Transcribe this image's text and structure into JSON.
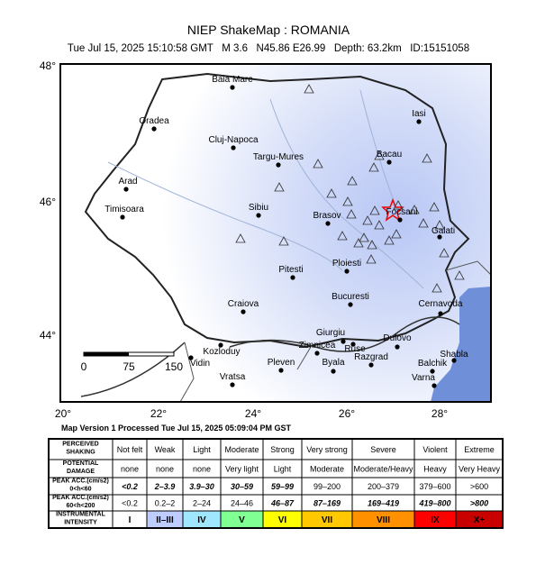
{
  "header": {
    "title": "NIEP ShakeMap : ROMANIA",
    "subtitle": "Tue Jul 15, 2025 15:10:58 GMT   M 3.6   N45.86 E26.99   Depth: 63.2km   ID:15151058"
  },
  "map": {
    "lat_labels": [
      "48°",
      "46°",
      "44°"
    ],
    "lon_labels": [
      "20°",
      "22°",
      "24°",
      "26°",
      "28°"
    ],
    "scale_labels": [
      "0",
      "75",
      "150"
    ],
    "cities": [
      "Baia Mare",
      "Oradea",
      "Cluj-Napoca",
      "Targu-Mures",
      "Iasi",
      "Bacau",
      "Arad",
      "Timisoara",
      "Sibiu",
      "Brasov",
      "Focsani",
      "Galati",
      "Ploiesti",
      "Pitesti",
      "Bucuresti",
      "Craiova",
      "Cernavoda",
      "Giurgiu",
      "Zimnicea",
      "Ruse",
      "Dulovo",
      "Kozloduy",
      "Vidin",
      "Pleven",
      "Byala",
      "Razgrad",
      "Balchik",
      "Shabla",
      "Varna",
      "Vratsa"
    ],
    "version": "Map Version 1 Processed Tue Jul 15, 2025 05:09:04 PM GST"
  },
  "table": {
    "rows": [
      [
        [
          "PERCEIVED",
          "SHAKING"
        ],
        "Not felt",
        "Weak",
        "Light",
        "Moderate",
        "Strong",
        "Very strong",
        "Severe",
        "Violent",
        "Extreme"
      ],
      [
        [
          "POTENTIAL",
          "DAMAGE"
        ],
        "none",
        "none",
        "none",
        "Very light",
        "Light",
        "Moderate",
        "Moderate/Heavy",
        "Heavy",
        "Very Heavy"
      ],
      [
        [
          "PEAK ACC.(cm/s2)",
          "0<h<60"
        ],
        "<0.2",
        "2–3.9",
        "3.9–30",
        "30–59",
        "59–99",
        "99–200",
        "200–379",
        "379–600",
        ">600"
      ],
      [
        [
          "PEAK ACC.(cm/s2)",
          "60<h<200"
        ],
        "<0.2",
        "0.2–2",
        "2–24",
        "24–46",
        "46–87",
        "87–169",
        "169–419",
        "419–800",
        ">800"
      ],
      [
        [
          "INSTRUMENTAL",
          "INTENSITY"
        ],
        "I",
        "II–III",
        "IV",
        "V",
        "VI",
        "VII",
        "VIII",
        "IX",
        "X+"
      ]
    ]
  }
}
